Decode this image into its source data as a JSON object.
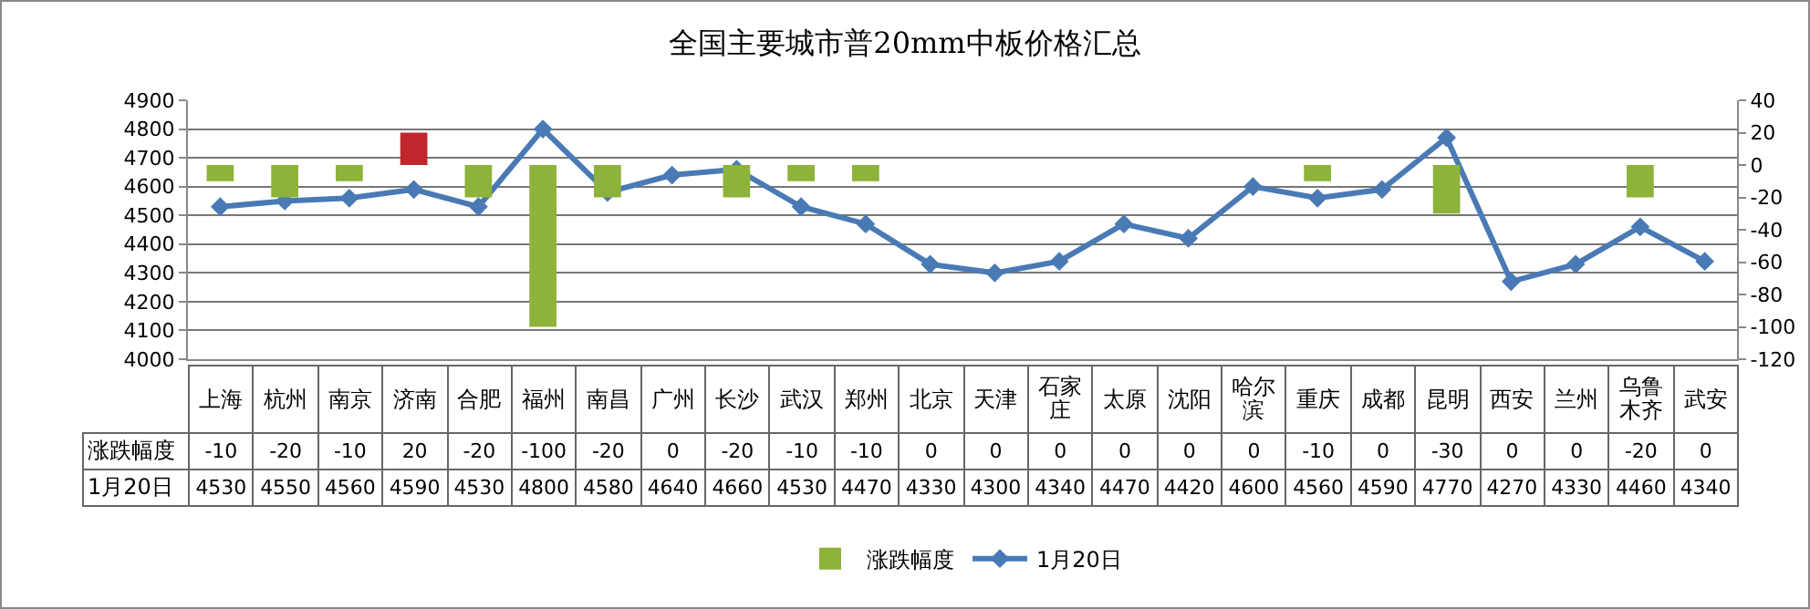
{
  "chart_data": {
    "type": "bar",
    "title": "全国主要城市普20mm中板价格汇总",
    "categories": [
      "上海",
      "杭州",
      "南京",
      "济南",
      "合肥",
      "福州",
      "南昌",
      "广州",
      "长沙",
      "武汉",
      "郑州",
      "北京",
      "天津",
      "石家庄",
      "太原",
      "沈阳",
      "哈尔滨",
      "重庆",
      "成都",
      "昆明",
      "西安",
      "兰州",
      "乌鲁木齐",
      "武安"
    ],
    "series": [
      {
        "name": "涨跌幅度",
        "axis": "y2",
        "colors": [
          "#8db33a",
          "#8db33a",
          "#8db33a",
          "#c0272d",
          "#8db33a",
          "#8db33a",
          "#8db33a",
          "#8db33a",
          "#8db33a",
          "#8db33a",
          "#8db33a",
          "#8db33a",
          "#8db33a",
          "#8db33a",
          "#8db33a",
          "#8db33a",
          "#8db33a",
          "#8db33a",
          "#8db33a",
          "#8db33a",
          "#8db33a",
          "#8db33a",
          "#8db33a",
          "#8db33a"
        ],
        "values": [
          -10,
          -20,
          -10,
          20,
          -20,
          -100,
          -20,
          0,
          -20,
          -10,
          -10,
          0,
          0,
          0,
          0,
          0,
          0,
          -10,
          0,
          -30,
          0,
          0,
          -20,
          0
        ]
      },
      {
        "name": "1月20日",
        "type": "line",
        "color": "#4a7ab5",
        "marker": "diamond",
        "values": [
          4530,
          4550,
          4560,
          4590,
          4530,
          4800,
          4580,
          4640,
          4660,
          4530,
          4470,
          4330,
          4300,
          4340,
          4470,
          4420,
          4600,
          4560,
          4590,
          4770,
          4270,
          4330,
          4460,
          4340
        ]
      }
    ],
    "ylim": [
      4000,
      4900
    ],
    "yticks": [
      4000,
      4100,
      4200,
      4300,
      4400,
      4500,
      4600,
      4700,
      4800,
      4900
    ],
    "y2lim": [
      -120,
      40
    ],
    "y2ticks": [
      -120,
      -100,
      -80,
      -60,
      -40,
      -20,
      0,
      20,
      40
    ],
    "grid": "y",
    "legend": "bottom",
    "data_labels": true
  }
}
